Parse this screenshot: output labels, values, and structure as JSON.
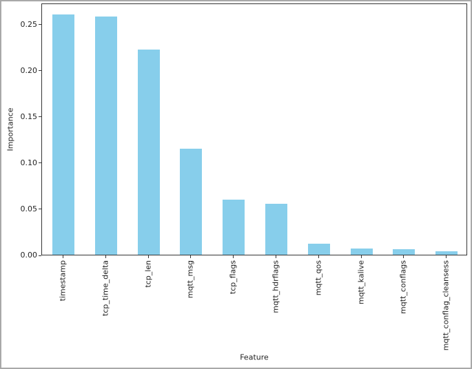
{
  "window": {
    "background": "#ffffff",
    "border_color": "#a8a8a8"
  },
  "chart_data": {
    "type": "bar",
    "title": "",
    "xlabel": "Feature",
    "ylabel": "Importance",
    "categories": [
      "timestamp",
      "tcp_time_delta",
      "tcp_len",
      "mqtt_msg",
      "tcp_flags",
      "mqtt_hdrflags",
      "mqtt_qos",
      "mqtt_kalive",
      "mqtt_conflags",
      "mqtt_conflag_cleansess"
    ],
    "values": [
      0.26,
      0.258,
      0.222,
      0.115,
      0.06,
      0.055,
      0.012,
      0.007,
      0.006,
      0.004
    ],
    "yticks": [
      0.0,
      0.05,
      0.1,
      0.15,
      0.2,
      0.25
    ],
    "ytick_label_format": "2dp",
    "ylim": [
      0,
      0.273
    ],
    "x_tick_rotation": 90,
    "grid": false,
    "legend": "none",
    "bar_color": "#87CEEB",
    "axis_color": "#333333",
    "text_color": "#1f1f1f"
  }
}
